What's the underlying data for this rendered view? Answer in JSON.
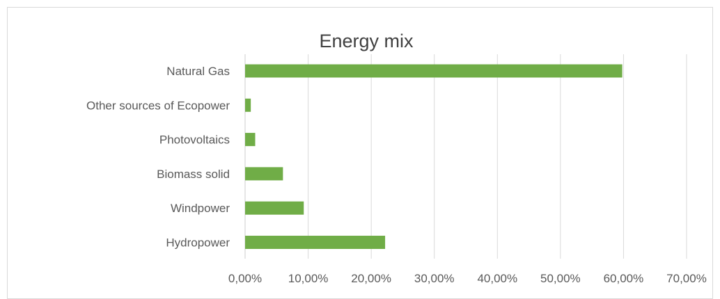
{
  "chart_data": {
    "type": "bar",
    "orientation": "horizontal",
    "title": "Energy mix",
    "categories": [
      "Natural Gas",
      "Other sources of Ecopower",
      "Photovoltaics",
      "Biomass solid",
      "Windpower",
      "Hydropower"
    ],
    "values": [
      0.598,
      0.009,
      0.016,
      0.06,
      0.093,
      0.222
    ],
    "xlim": [
      0,
      0.7
    ],
    "x_ticks": [
      0,
      0.1,
      0.2,
      0.3,
      0.4,
      0.5,
      0.6,
      0.7
    ],
    "x_tick_labels": [
      "0,00%",
      "10,00%",
      "20,00%",
      "30,00%",
      "40,00%",
      "50,00%",
      "60,00%",
      "70,00%"
    ],
    "grid": "vertical",
    "legend": "none",
    "bar_color": "#70ad47",
    "grid_color": "#d9d9d9"
  }
}
